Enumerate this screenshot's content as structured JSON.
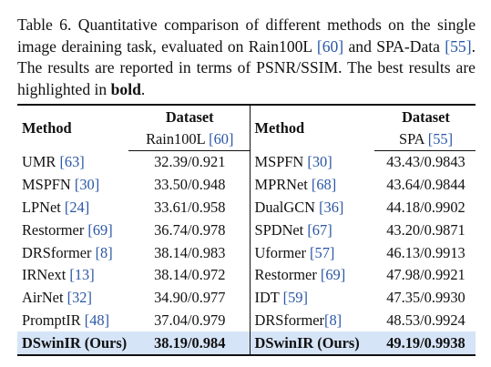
{
  "caption": {
    "label": "Table 6.",
    "text_1": " Quantitative comparison of different methods on the single image deraining task, evaluated on Rain100L ",
    "cite_1": "[60]",
    "text_2": " and SPA-Data ",
    "cite_2": "[55]",
    "text_3": ". The results are reported in terms of PSNR/SSIM. The best results are highlighted in ",
    "bold_word": "bold",
    "text_4": "."
  },
  "table": {
    "left": {
      "method_header": "Method",
      "dataset_header": "Dataset",
      "dataset_name": "Rain100L",
      "dataset_cite": "[60]",
      "rows": [
        {
          "method": "UMR",
          "cite": "[63]",
          "value": "32.39/0.921"
        },
        {
          "method": "MSPFN",
          "cite": "[30]",
          "value": "33.50/0.948"
        },
        {
          "method": "LPNet",
          "cite": "[24]",
          "value": "33.61/0.958"
        },
        {
          "method": "Restormer",
          "cite": "[69]",
          "value": "36.74/0.978"
        },
        {
          "method": "DRSformer",
          "cite": "[8]",
          "value": "38.14/0.983"
        },
        {
          "method": "IRNext",
          "cite": "[13]",
          "value": "38.14/0.972"
        },
        {
          "method": "AirNet",
          "cite": "[32]",
          "value": "34.90/0.977"
        },
        {
          "method": "PromptIR",
          "cite": "[48]",
          "value": "37.04/0.979"
        }
      ],
      "best": {
        "method": "DSwinIR (Ours)",
        "value": "38.19/0.984"
      }
    },
    "right": {
      "method_header": "Method",
      "dataset_header": "Dataset",
      "dataset_name": "SPA",
      "dataset_cite": "[55]",
      "rows": [
        {
          "method": "MSPFN",
          "cite": "[30]",
          "value": "43.43/0.9843"
        },
        {
          "method": "MPRNet",
          "cite": "[68]",
          "value": "43.64/0.9844"
        },
        {
          "method": "DualGCN",
          "cite": "[36]",
          "value": "44.18/0.9902"
        },
        {
          "method": "SPDNet",
          "cite": "[67]",
          "value": "43.20/0.9871"
        },
        {
          "method": "Uformer",
          "cite": "[57]",
          "value": "46.13/0.9913"
        },
        {
          "method": "Restormer",
          "cite": "[69]",
          "value": "47.98/0.9921"
        },
        {
          "method": "IDT",
          "cite": "[59]",
          "value": "47.35/0.9930"
        },
        {
          "method": "DRSformer",
          "cite": "[8]",
          "value": "48.53/0.9924"
        }
      ],
      "best": {
        "method": "DSwinIR (Ours)",
        "value": "49.19/0.9938"
      }
    }
  },
  "colors": {
    "citation": "#2a57a6",
    "highlight_row": "#d6e4f7",
    "text": "#111111"
  }
}
